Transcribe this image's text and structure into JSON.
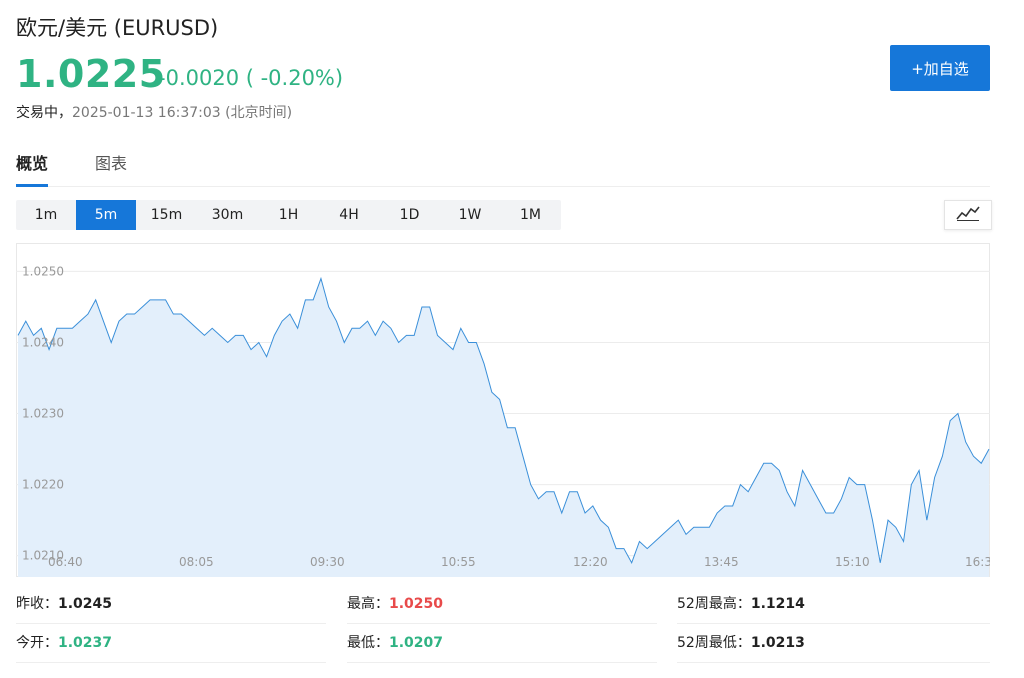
{
  "header": {
    "title": "欧元/美元 (EURUSD)",
    "price": "1.0225",
    "change": "-0.0020 ( -0.20%)",
    "status_label": "交易中，",
    "timestamp": "2025-01-13 16:37:03",
    "timezone": "(北京时间)",
    "add_button": "+加自选",
    "price_color": "#2fb383",
    "accent_color": "#1677d9"
  },
  "tabs": [
    {
      "label": "概览",
      "active": true
    },
    {
      "label": "图表",
      "active": false
    }
  ],
  "periods": [
    {
      "label": "1m",
      "active": false
    },
    {
      "label": "5m",
      "active": true
    },
    {
      "label": "15m",
      "active": false
    },
    {
      "label": "30m",
      "active": false
    },
    {
      "label": "1H",
      "active": false
    },
    {
      "label": "4H",
      "active": false
    },
    {
      "label": "1D",
      "active": false
    },
    {
      "label": "1W",
      "active": false
    },
    {
      "label": "1M",
      "active": false
    }
  ],
  "chart_type_icon": "line-chart-icon",
  "chart_data": {
    "type": "area",
    "ylim": [
      1.0207,
      1.0254
    ],
    "yticks": [
      1.025,
      1.024,
      1.023,
      1.022,
      1.021
    ],
    "ytick_labels": [
      "1.0250",
      "1.0240",
      "1.0230",
      "1.0220",
      "1.0210"
    ],
    "xtick_labels": [
      "06:40",
      "08:05",
      "09:30",
      "10:55",
      "12:20",
      "13:45",
      "15:10",
      "16:3"
    ],
    "grid": true,
    "line_color": "#3a8fd9",
    "fill_color": "#e3effb",
    "values": [
      1.0241,
      1.0243,
      1.0241,
      1.0242,
      1.0239,
      1.0242,
      1.0242,
      1.0242,
      1.0243,
      1.0244,
      1.0246,
      1.0243,
      1.024,
      1.0243,
      1.0244,
      1.0244,
      1.0245,
      1.0246,
      1.0246,
      1.0246,
      1.0244,
      1.0244,
      1.0243,
      1.0242,
      1.0241,
      1.0242,
      1.0241,
      1.024,
      1.0241,
      1.0241,
      1.0239,
      1.024,
      1.0238,
      1.0241,
      1.0243,
      1.0244,
      1.0242,
      1.0246,
      1.0246,
      1.0249,
      1.0245,
      1.0243,
      1.024,
      1.0242,
      1.0242,
      1.0243,
      1.0241,
      1.0243,
      1.0242,
      1.024,
      1.0241,
      1.0241,
      1.0245,
      1.0245,
      1.0241,
      1.024,
      1.0239,
      1.0242,
      1.024,
      1.024,
      1.0237,
      1.0233,
      1.0232,
      1.0228,
      1.0228,
      1.0224,
      1.022,
      1.0218,
      1.0219,
      1.0219,
      1.0216,
      1.0219,
      1.0219,
      1.0216,
      1.0217,
      1.0215,
      1.0214,
      1.0211,
      1.0211,
      1.0209,
      1.0212,
      1.0211,
      1.0212,
      1.0213,
      1.0214,
      1.0215,
      1.0213,
      1.0214,
      1.0214,
      1.0214,
      1.0216,
      1.0217,
      1.0217,
      1.022,
      1.0219,
      1.0221,
      1.0223,
      1.0223,
      1.0222,
      1.0219,
      1.0217,
      1.0222,
      1.022,
      1.0218,
      1.0216,
      1.0216,
      1.0218,
      1.0221,
      1.022,
      1.022,
      1.0215,
      1.0209,
      1.0215,
      1.0214,
      1.0212,
      1.022,
      1.0222,
      1.0215,
      1.0221,
      1.0224,
      1.0229,
      1.023,
      1.0226,
      1.0224,
      1.0223,
      1.0225
    ]
  },
  "stats": {
    "prev_close_label": "昨收：",
    "prev_close": "1.0245",
    "high_label": "最高：",
    "high": "1.0250",
    "high52_label": "52周最高：",
    "high52": "1.1214",
    "open_label": "今开：",
    "open": "1.0237",
    "low_label": "最低：",
    "low": "1.0207",
    "low52_label": "52周最低：",
    "low52": "1.0213",
    "up_color": "#e84a4a",
    "down_color": "#2fb383"
  }
}
